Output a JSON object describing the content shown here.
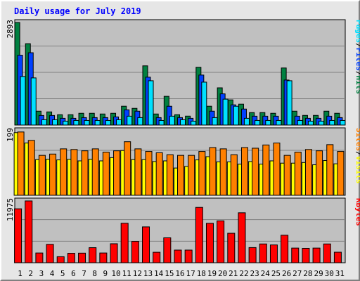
{
  "title": "Daily usage for July 2019",
  "colors": {
    "title": "#0000ff",
    "background": "#e6e6e6",
    "panel": "#c0c0c0",
    "gridline": "#808080",
    "hits": "#008040",
    "files": "#0040ff",
    "pages": "#00e0ff",
    "visits": "#ffff00",
    "sites": "#ff8000",
    "kbytes": "#ff0000",
    "weekend_day": "#008040"
  },
  "slash": "/",
  "chart_data": [
    {
      "type": "bar",
      "ymax_label": "2893",
      "ylim": [
        0,
        2893
      ],
      "categories": [
        "1",
        "2",
        "3",
        "4",
        "5",
        "6",
        "7",
        "8",
        "9",
        "10",
        "11",
        "12",
        "13",
        "14",
        "15",
        "16",
        "17",
        "18",
        "19",
        "20",
        "21",
        "22",
        "23",
        "24",
        "25",
        "26",
        "27",
        "28",
        "29",
        "30",
        "31"
      ],
      "weekend_days": [
        "6",
        "7",
        "13",
        "14",
        "20",
        "21",
        "27",
        "28"
      ],
      "series": [
        {
          "name": "Hits",
          "values": [
            2893,
            2295,
            391,
            371,
            292,
            292,
            332,
            332,
            312,
            332,
            531,
            471,
            1670,
            312,
            810,
            292,
            252,
            1630,
            531,
            1050,
            710,
            590,
            352,
            352,
            332,
            1610,
            391,
            272,
            272,
            391,
            332
          ]
        },
        {
          "name": "Files",
          "values": [
            1970,
            2040,
            270,
            270,
            190,
            190,
            210,
            210,
            210,
            230,
            430,
            391,
            1350,
            210,
            530,
            210,
            190,
            1410,
            391,
            880,
            570,
            451,
            250,
            250,
            250,
            1270,
            250,
            190,
            190,
            250,
            210
          ]
        },
        {
          "name": "Pages",
          "values": [
            1370,
            1330,
            150,
            150,
            110,
            130,
            130,
            130,
            130,
            150,
            250,
            210,
            1250,
            130,
            250,
            150,
            110,
            1210,
            210,
            730,
            531,
            190,
            130,
            130,
            130,
            1250,
            130,
            110,
            110,
            130,
            130
          ]
        }
      ]
    },
    {
      "type": "bar",
      "ymax_label": "199",
      "ylim": [
        0,
        199
      ],
      "categories": [
        "1",
        "2",
        "3",
        "4",
        "5",
        "6",
        "7",
        "8",
        "9",
        "10",
        "11",
        "12",
        "13",
        "14",
        "15",
        "16",
        "17",
        "18",
        "19",
        "20",
        "21",
        "22",
        "23",
        "24",
        "25",
        "26",
        "27",
        "28",
        "29",
        "30",
        "31"
      ],
      "series": [
        {
          "name": "Visits",
          "values": [
            193,
            161,
            110,
            111,
            109,
            111,
            106,
            111,
            106,
            116,
            138,
            110,
            110,
            104,
            106,
            84,
            89,
            109,
            119,
            103,
            103,
            96,
            104,
            96,
            106,
            99,
            99,
            101,
            94,
            107,
            97
          ]
        },
        {
          "name": "Sites",
          "values": [
            195,
            169,
            123,
            127,
            143,
            141,
            137,
            143,
            133,
            137,
            165,
            143,
            135,
            131,
            125,
            123,
            123,
            135,
            147,
            143,
            125,
            147,
            145,
            155,
            161,
            123,
            133,
            141,
            137,
            156,
            135
          ]
        }
      ]
    },
    {
      "type": "bar",
      "ymax_label": "11975",
      "ylim": [
        0,
        11975
      ],
      "categories": [
        "1",
        "2",
        "3",
        "4",
        "5",
        "6",
        "7",
        "8",
        "9",
        "10",
        "11",
        "12",
        "13",
        "14",
        "15",
        "16",
        "17",
        "18",
        "19",
        "20",
        "21",
        "22",
        "23",
        "24",
        "25",
        "26",
        "27",
        "28",
        "29",
        "30",
        "31"
      ],
      "series": [
        {
          "name": "KBytes",
          "values": [
            10450,
            11975,
            1890,
            3560,
            1170,
            1830,
            1860,
            2920,
            1890,
            3680,
            7650,
            4140,
            6950,
            2030,
            4830,
            2450,
            2450,
            10720,
            7640,
            8110,
            5710,
            9680,
            2940,
            3640,
            3450,
            5330,
            2840,
            2790,
            2840,
            3640,
            2040
          ]
        }
      ]
    }
  ]
}
